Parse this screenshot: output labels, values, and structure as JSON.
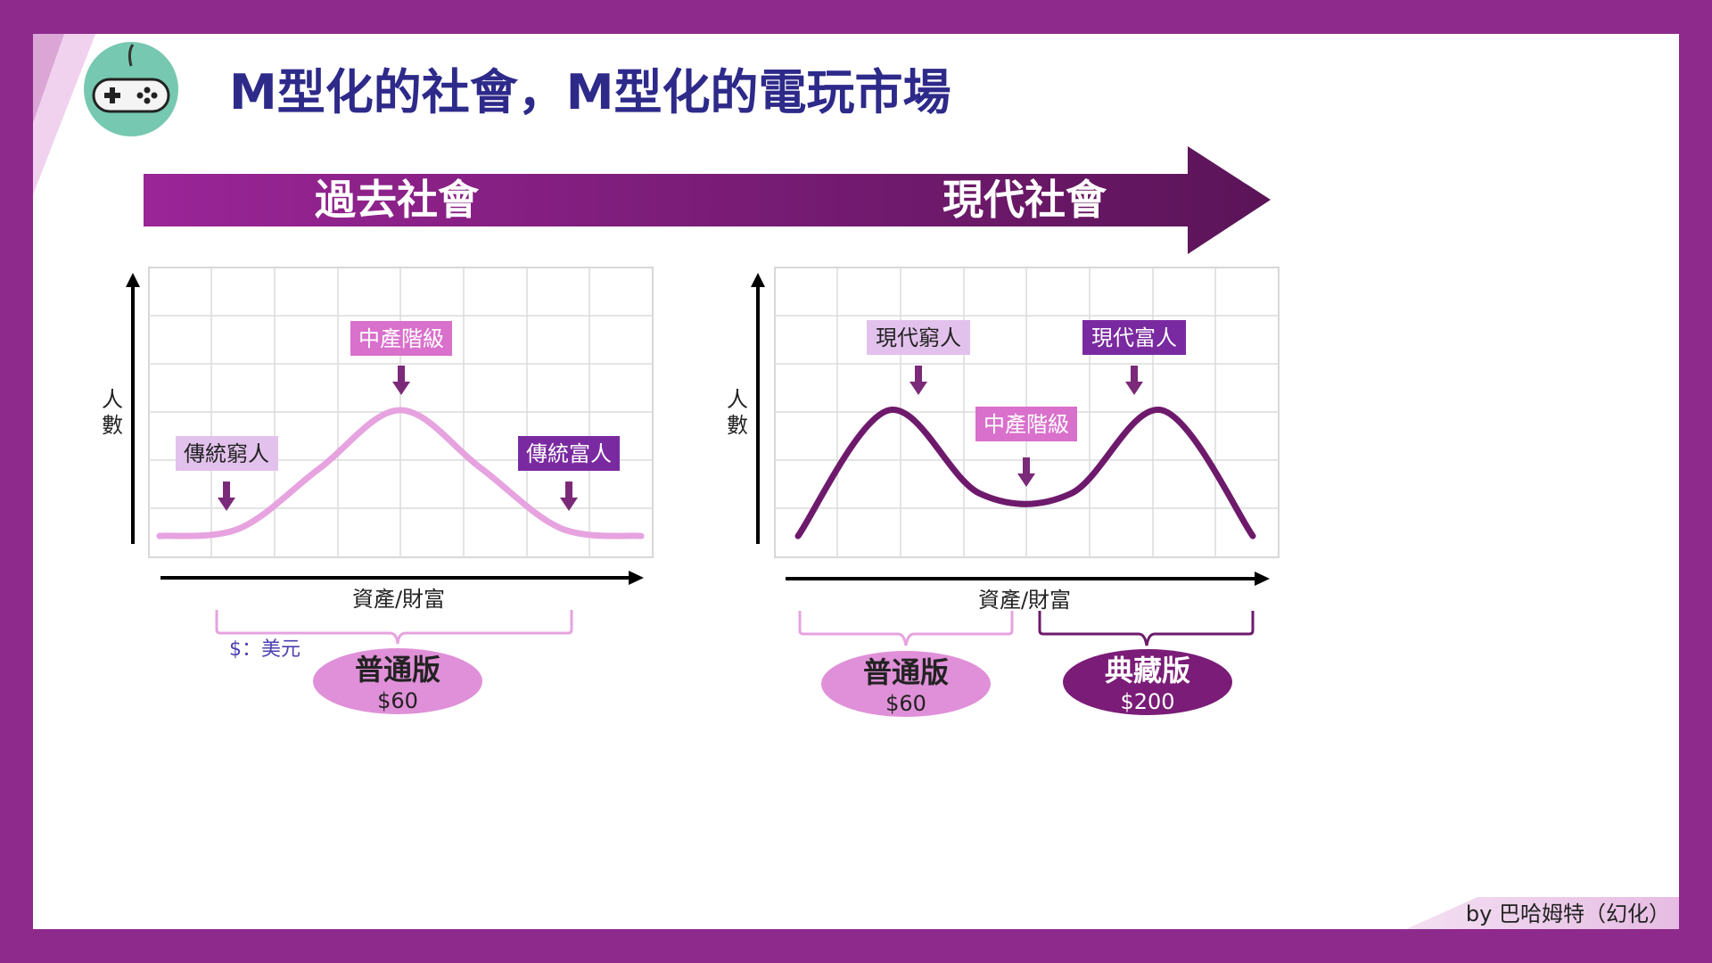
{
  "title": "M型化的社會，M型化的電玩市場",
  "timeline": {
    "left_label": "過去社會",
    "right_label": "現代社會"
  },
  "credit": "by 巴哈姆特（幻化）",
  "currency_note": "$：美元",
  "colors": {
    "frame": "#8e2a8c",
    "arrow_start": "#9a2597",
    "arrow_end": "#5b1458",
    "title": "#2e2a8a",
    "curve_left": "#e6a3df",
    "curve_right": "#6e1a6c",
    "label_pale": "#e2c2ec",
    "label_pink": "#d970cc",
    "label_purple": "#7a2aa0",
    "icon_circle": "#76c8b0"
  },
  "left_chart": {
    "ylabel_1": "人",
    "ylabel_2": "數",
    "xlabel": "資產/財富",
    "labels": {
      "poor": "傳統窮人",
      "middle": "中產階級",
      "rich": "傳統富人"
    },
    "edition": {
      "name": "普通版",
      "price": "$60"
    }
  },
  "right_chart": {
    "ylabel_1": "人",
    "ylabel_2": "數",
    "xlabel": "資產/財富",
    "labels": {
      "poor": "現代窮人",
      "middle": "中產階級",
      "rich": "現代富人"
    },
    "edition_left": {
      "name": "普通版",
      "price": "$60"
    },
    "edition_right": {
      "name": "典藏版",
      "price": "$200"
    }
  },
  "chart_data": [
    {
      "type": "line",
      "series": [
        {
          "values": [
            0.02,
            0.08,
            0.55,
            1.0,
            0.55,
            0.08,
            0.02
          ]
        }
      ]
    },
    {
      "type": "line",
      "series": [
        {
          "values": [
            0.02,
            1.0,
            0.35,
            0.35,
            1.0,
            0.02
          ]
        }
      ]
    }
  ]
}
